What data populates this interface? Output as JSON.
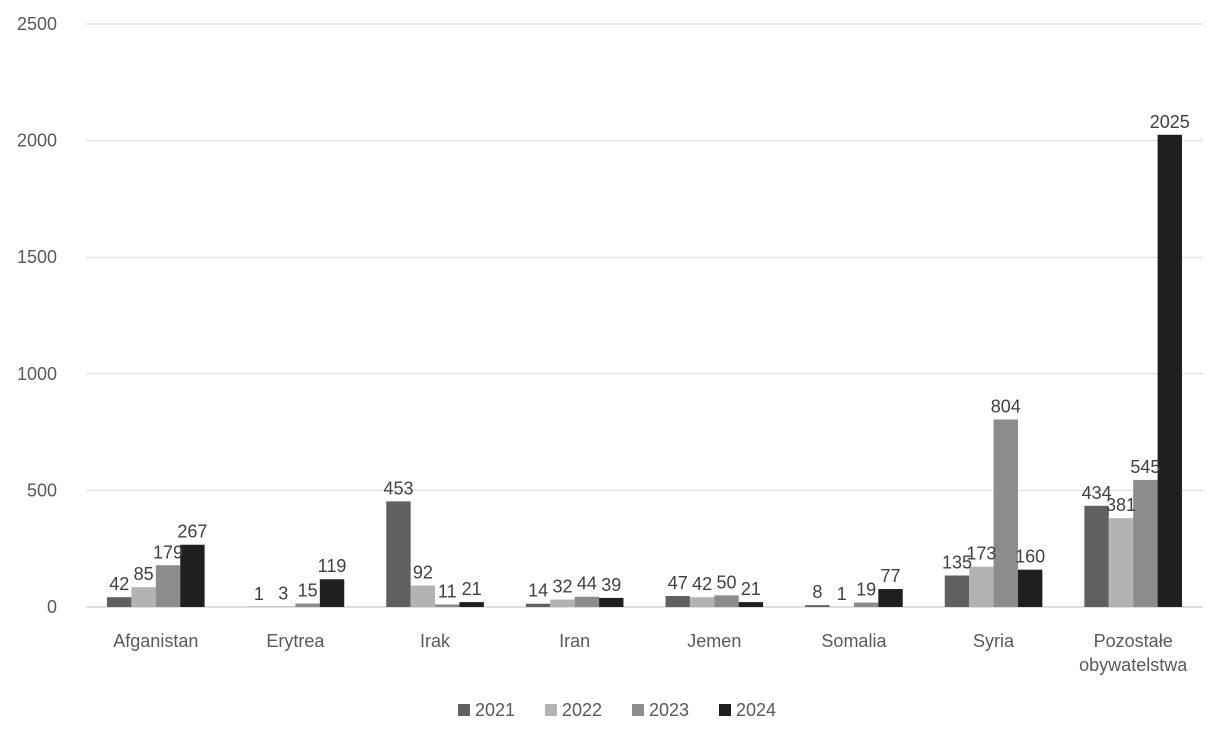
{
  "chart_data": {
    "type": "bar",
    "title": "",
    "xlabel": "",
    "ylabel": "",
    "ylim": [
      0,
      2500
    ],
    "yticks": [
      0,
      500,
      1000,
      1500,
      2000,
      2500
    ],
    "grid": true,
    "legend_position": "bottom",
    "categories": [
      [
        "Afganistan"
      ],
      [
        "Erytrea"
      ],
      [
        "Irak"
      ],
      [
        "Iran"
      ],
      [
        "Jemen"
      ],
      [
        "Somalia"
      ],
      [
        "Syria"
      ],
      [
        "Pozostałe",
        "obywatelstwa"
      ]
    ],
    "series": [
      {
        "name": "2021",
        "color": "#606060",
        "values": [
          42,
          1,
          453,
          14,
          47,
          8,
          135,
          434
        ]
      },
      {
        "name": "2022",
        "color": "#b3b3b3",
        "values": [
          85,
          3,
          92,
          32,
          42,
          1,
          173,
          381
        ]
      },
      {
        "name": "2023",
        "color": "#8c8c8c",
        "values": [
          179,
          15,
          11,
          44,
          50,
          19,
          804,
          545
        ]
      },
      {
        "name": "2024",
        "color": "#1f1f1f",
        "values": [
          267,
          119,
          21,
          39,
          21,
          77,
          160,
          2025
        ]
      }
    ]
  }
}
